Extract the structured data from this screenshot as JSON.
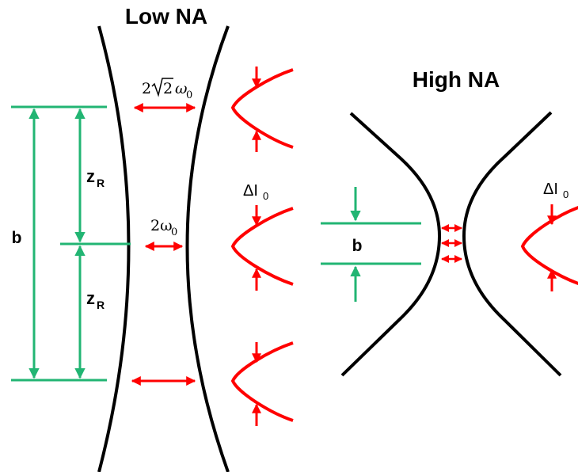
{
  "colors": {
    "beam": "#000000",
    "width_arrow": "#ff0000",
    "measure": "#22b573"
  },
  "low_na": {
    "title": "Low NA",
    "b_label": "b",
    "zr_label_main": "z",
    "zr_label_sub": "R",
    "waist_label_main": "2ω",
    "waist_label_sub": "0",
    "rayleigh_label_pre": "2",
    "rayleigh_label_rad": "2",
    "rayleigh_label_main": "ω",
    "rayleigh_label_sub": "0",
    "delta_label_main": "ΔI",
    "delta_label_sub": "0"
  },
  "high_na": {
    "title": "High NA",
    "b_label": "b",
    "delta_label_main": "ΔI",
    "delta_label_sub": "0"
  }
}
